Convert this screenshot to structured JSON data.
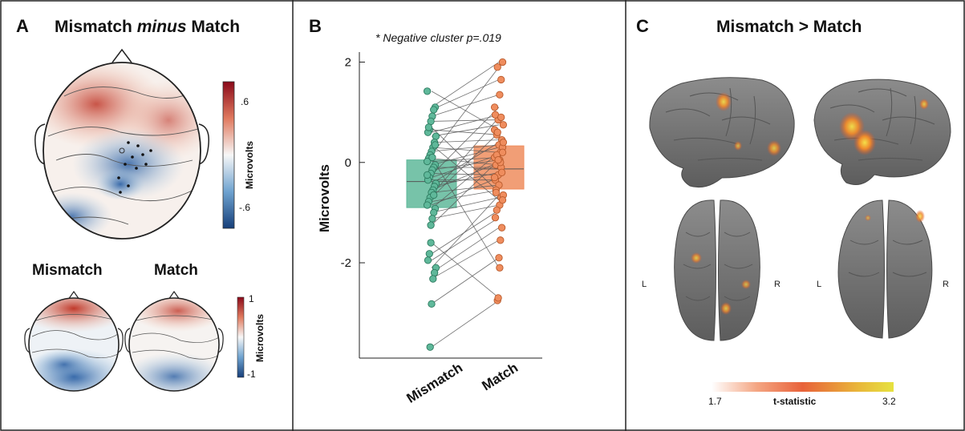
{
  "panel_a": {
    "letter": "A",
    "title_part1": "Mismatch ",
    "title_italic": "minus",
    "title_part2": " Match",
    "colorbar": {
      "label": "Microvolts",
      "tick_top": ".6",
      "tick_bottom": "-.6"
    },
    "mismatch_label": "Mismatch",
    "match_label": "Match",
    "small_colorbar": {
      "label": "Microvolts",
      "tick_top": "1",
      "tick_bottom": "-1"
    }
  },
  "panel_b": {
    "letter": "B",
    "annotation": "* Negative cluster p=.019"
  },
  "panel_c": {
    "letter": "C",
    "title": "Mismatch > Match",
    "left_hemi": "L",
    "right_hemi": "R",
    "left_hemi_2": "L",
    "right_hemi_2": "R",
    "colorbar": {
      "label": "t-statistic",
      "min": "1.7",
      "max": "3.2"
    }
  },
  "colors": {
    "mismatch": "#5fb89a",
    "match": "#ef8d5e",
    "positive": "#b2182b",
    "negative": "#2166ac",
    "brain": "#7c7c7c"
  },
  "chart_data": {
    "type": "scatter",
    "categories": [
      "Mismatch",
      "Match"
    ],
    "xlabel": "",
    "ylabel": "Microvolts",
    "ylim": [
      -3.9,
      2.2
    ],
    "yticks": [
      "2",
      "0",
      "-2"
    ],
    "ytick_values": [
      2,
      0,
      -2
    ],
    "grid": false,
    "boxes": [
      {
        "category": "Mismatch",
        "q1": -0.9,
        "median": -0.38,
        "q3": 0.05
      },
      {
        "category": "Match",
        "q1": -0.53,
        "median": -0.13,
        "q3": 0.33
      }
    ],
    "pairs": [
      [
        1.42,
        0.65
      ],
      [
        1.1,
        2.0
      ],
      [
        1.05,
        1.65
      ],
      [
        0.92,
        1.35
      ],
      [
        0.82,
        0.85
      ],
      [
        0.65,
        0.55
      ],
      [
        0.6,
        0.95
      ],
      [
        0.52,
        0.75
      ],
      [
        0.4,
        0.45
      ],
      [
        0.3,
        0.2
      ],
      [
        0.22,
        0.35
      ],
      [
        0.15,
        1.9
      ],
      [
        0.08,
        -0.05
      ],
      [
        0.02,
        0.1
      ],
      [
        -0.05,
        0.3
      ],
      [
        -0.1,
        -0.1
      ],
      [
        -0.15,
        0.05
      ],
      [
        -0.22,
        -0.25
      ],
      [
        -0.3,
        0.15
      ],
      [
        -0.35,
        -0.35
      ],
      [
        -0.42,
        0.4
      ],
      [
        -0.48,
        -0.2
      ],
      [
        -0.55,
        0.0
      ],
      [
        -0.6,
        -0.45
      ],
      [
        -0.7,
        0.6
      ],
      [
        -0.78,
        -0.55
      ],
      [
        -0.85,
        -0.3
      ],
      [
        -0.92,
        0.2
      ],
      [
        -1.0,
        -0.7
      ],
      [
        -1.12,
        -0.85
      ],
      [
        -1.25,
        0.05
      ],
      [
        -1.82,
        -0.95
      ],
      [
        -1.95,
        -1.1
      ],
      [
        -2.1,
        -0.65
      ],
      [
        -2.2,
        -1.3
      ],
      [
        -2.32,
        -1.55
      ],
      [
        -2.82,
        -1.9
      ],
      [
        -3.68,
        -2.75
      ],
      [
        0.7,
        -0.6
      ],
      [
        -0.25,
        1.1
      ],
      [
        0.35,
        -0.75
      ],
      [
        -0.65,
        0.9
      ],
      [
        0.1,
        -2.1
      ],
      [
        -1.6,
        -2.7
      ]
    ]
  }
}
